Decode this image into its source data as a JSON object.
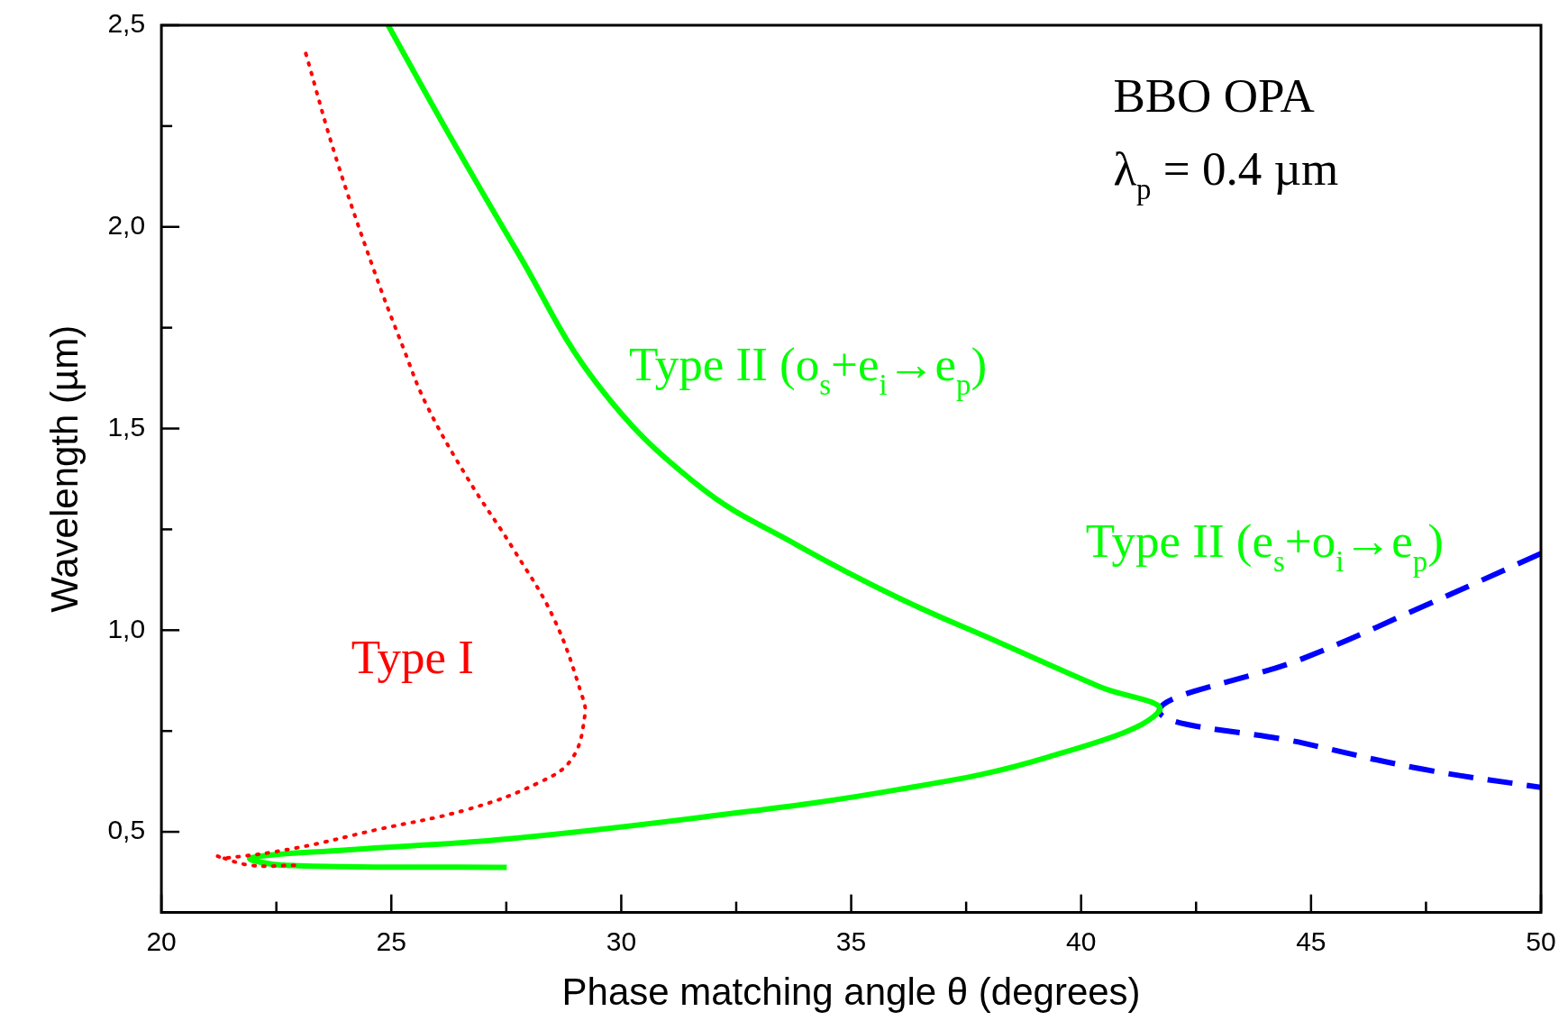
{
  "chart_data": {
    "type": "line",
    "xlabel": "Phase matching angle θ (degrees)",
    "ylabel": "Wavelength (µm)",
    "xlim": [
      20,
      50
    ],
    "ylim": [
      0.3,
      2.5
    ],
    "xticks": [
      20,
      {
        "value": 22.5,
        "label": null
      },
      25,
      {
        "value": 27.5,
        "label": null
      },
      30,
      {
        "value": 32.5,
        "label": null
      },
      35,
      {
        "value": 37.5,
        "label": null
      },
      40,
      {
        "value": 42.5,
        "label": null
      },
      45,
      {
        "value": 47.5,
        "label": null
      },
      50
    ],
    "yticks": [
      {
        "value": 0.5,
        "label": "0,5"
      },
      {
        "value": 0.75,
        "label": null
      },
      {
        "value": 1.0,
        "label": "1,0"
      },
      {
        "value": 1.25,
        "label": null
      },
      {
        "value": 1.5,
        "label": "1,5"
      },
      {
        "value": 1.75,
        "label": null
      },
      {
        "value": 2.0,
        "label": "2,0"
      },
      {
        "value": 2.25,
        "label": null
      },
      {
        "value": 2.5,
        "label": "2,5"
      }
    ],
    "grid": false,
    "legend": false,
    "marker": "none",
    "annotations": [
      "BBO OPA",
      "λ$_{p}$ = 0.4 µm",
      "Type II (e$_{s}$+o$_{i}$→e$_{p}$)"
    ],
    "series": [
      {
        "name": "Type I",
        "color": "#ff0000",
        "line_style": "dotted",
        "x": [
          23.14,
          23.8,
          24.63,
          25.26,
          25.76,
          26.64,
          27.66,
          28.53,
          29.14,
          29.21,
          28.92,
          28.17,
          26.64,
          24.67,
          22.93,
          21.4,
          21.22,
          21.94,
          22.93
        ],
        "values": [
          2.43,
          2.17,
          1.89,
          1.7,
          1.56,
          1.38,
          1.2,
          1.03,
          0.84,
          0.79,
          0.68,
          0.62,
          0.555,
          0.505,
          0.46,
          0.435,
          0.44,
          0.417,
          0.417
        ]
      },
      {
        "name": "Type II (o$_{s}$+e$_{i}$→e$_{p}$)",
        "color": "#00ff00",
        "line_style": "solid",
        "x": [
          24.93,
          26.2,
          27.73,
          29.48,
          31.66,
          33.84,
          36.03,
          38.21,
          40.4,
          41.7,
          39.3,
          36.03,
          31.66,
          27.29,
          24.02,
          21.94,
          22.7,
          27.51
        ],
        "values": [
          2.5,
          2.24,
          1.94,
          1.61,
          1.36,
          1.21,
          1.08,
          0.97,
          0.86,
          0.8,
          0.686,
          0.605,
          0.535,
          0.48,
          0.455,
          0.435,
          0.417,
          0.412
        ]
      },
      {
        "color": "#0000ff",
        "line_style": "dashed",
        "x": [
          50,
          47.4,
          44.83,
          41.7,
          44.83,
          47.4,
          50
        ],
        "values": [
          1.19,
          1.057,
          0.93,
          0.8,
          0.72,
          0.656,
          0.61
        ]
      }
    ]
  }
}
